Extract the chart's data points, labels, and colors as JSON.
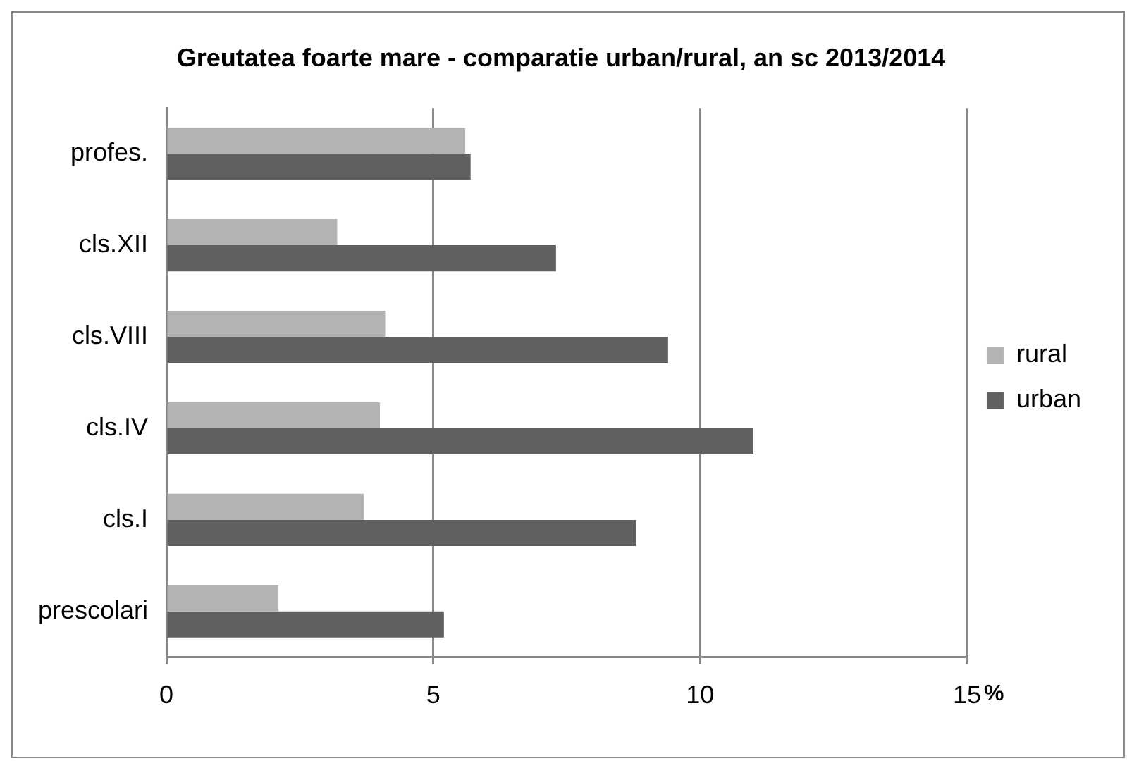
{
  "chart_data": {
    "type": "bar",
    "orientation": "horizontal",
    "title": "Greutatea foarte mare - comparatie urban/rural, an sc 2013/2014",
    "xlabel": "%",
    "categories": [
      "profes.",
      "cls.XII",
      "cls.VIII",
      "cls.IV",
      "cls.I",
      "prescolari"
    ],
    "series": [
      {
        "name": "rural",
        "color": "#b3b3b3",
        "values": [
          5.6,
          3.2,
          4.1,
          4.0,
          3.7,
          2.1
        ]
      },
      {
        "name": "urban",
        "color": "#606060",
        "values": [
          5.7,
          7.3,
          9.4,
          11.0,
          8.8,
          5.2
        ]
      }
    ],
    "xlim": [
      0,
      15
    ],
    "xticks": [
      0,
      5,
      10,
      15
    ],
    "grid": "x",
    "legend": "right"
  }
}
